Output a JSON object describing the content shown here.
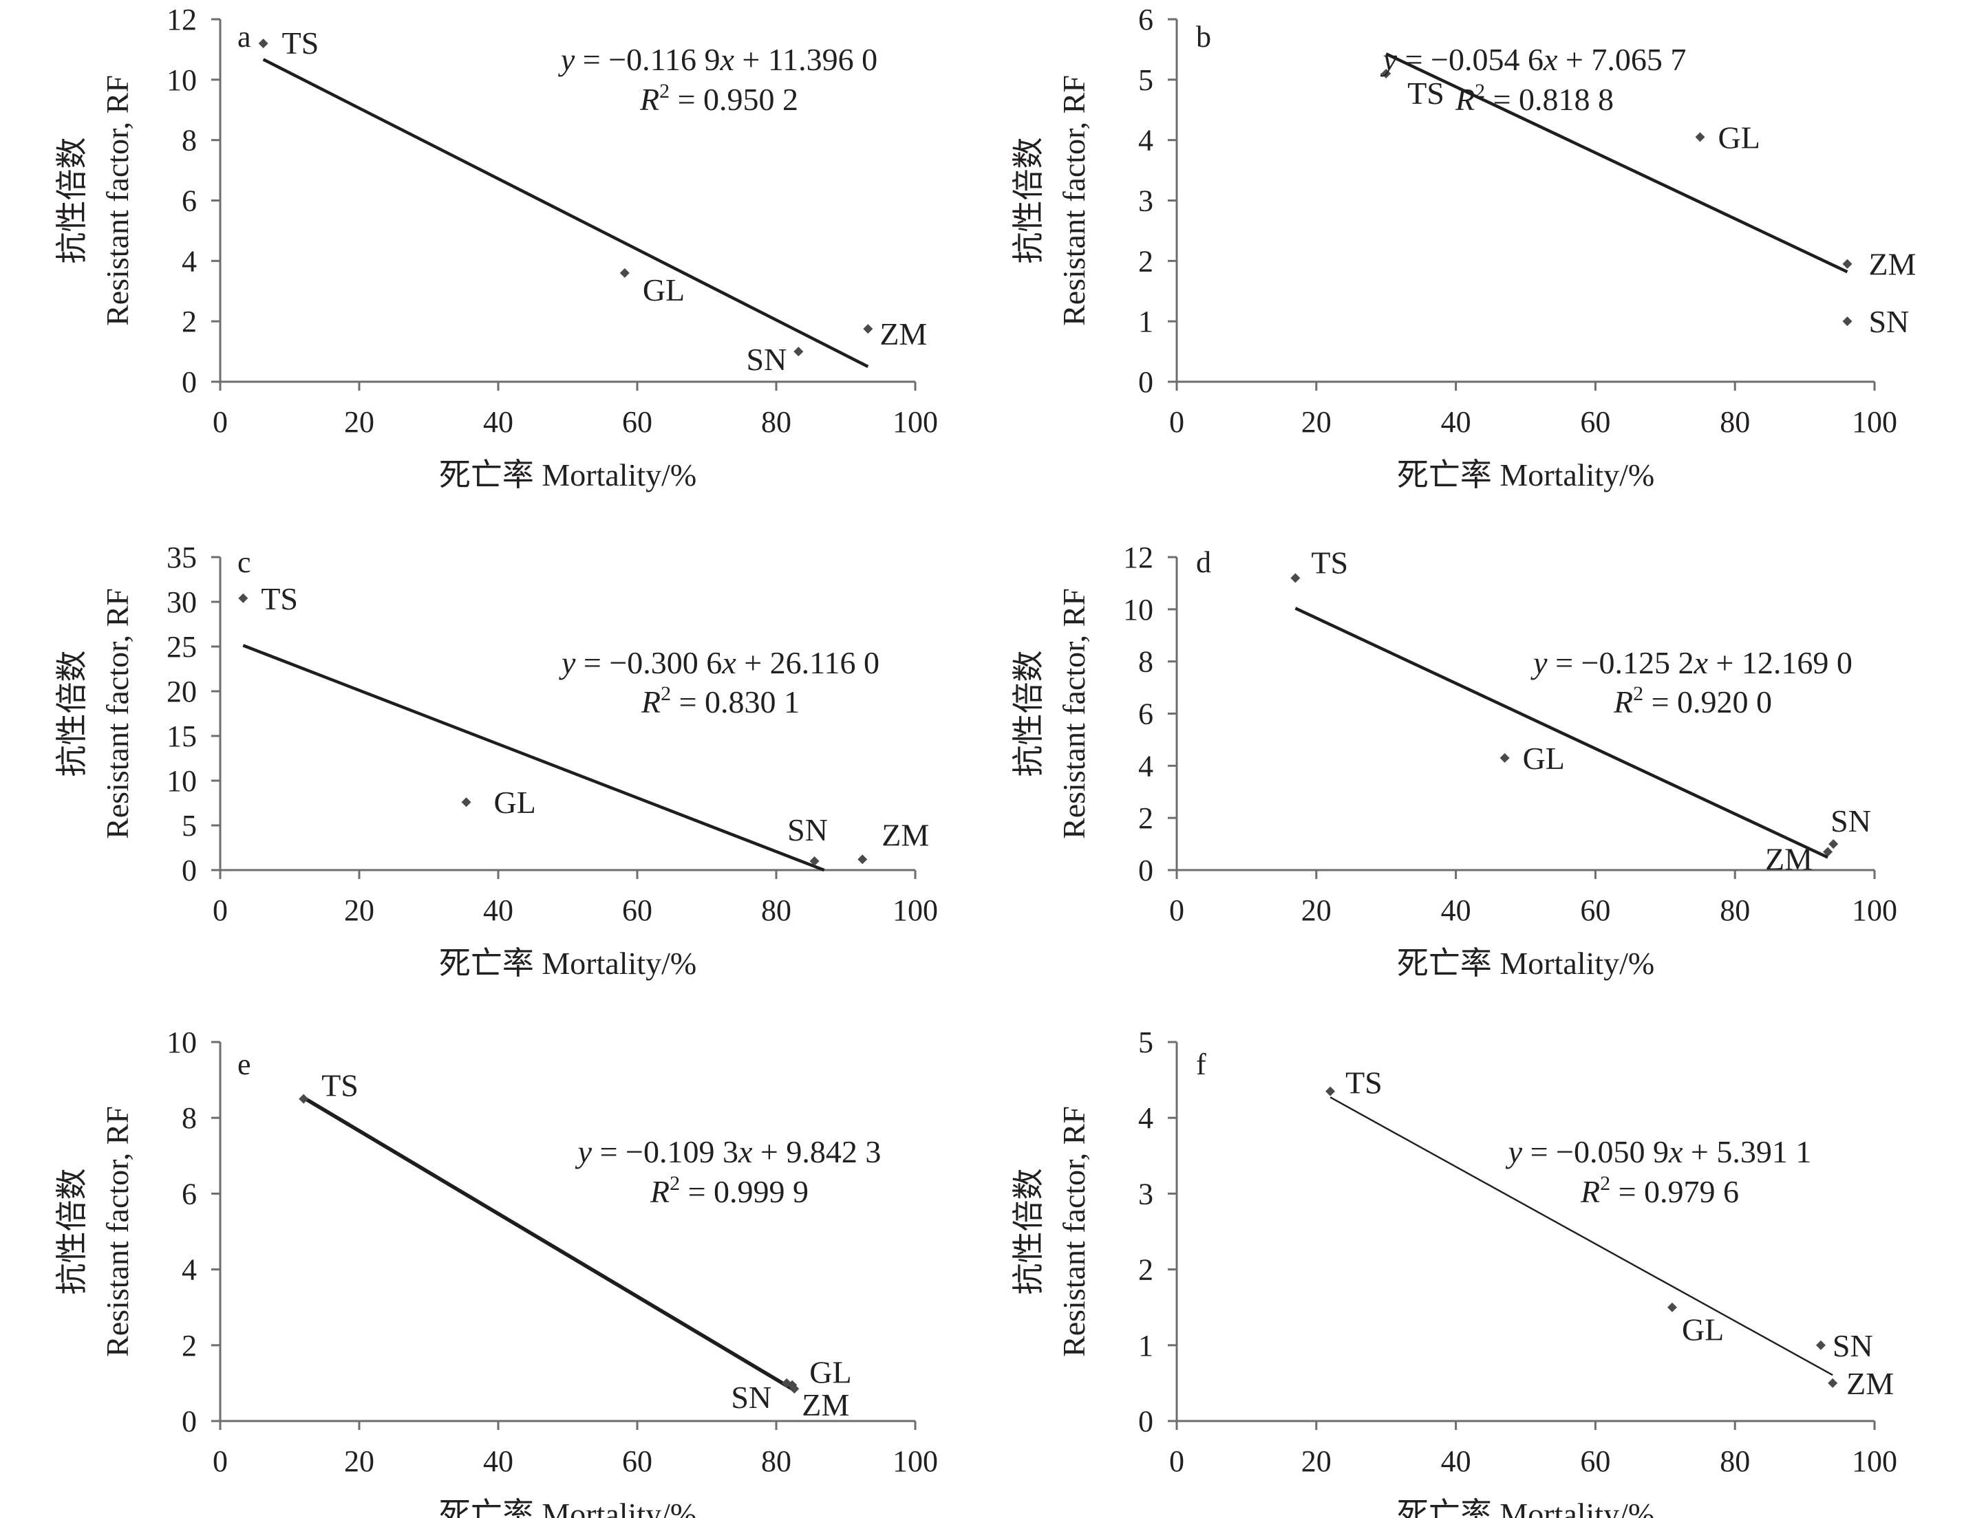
{
  "figure": {
    "panel_count": 6
  },
  "chart_data": [
    {
      "panel": "a",
      "type": "scatter",
      "xlabel": "死亡率 Mortality/%",
      "ylabel": [
        "抗性倍数",
        "Resistant factor, RF"
      ],
      "xlim": [
        0,
        100
      ],
      "ylim": [
        0,
        12
      ],
      "xticks": [
        "0",
        "20",
        "40",
        "60",
        "80",
        "100"
      ],
      "yticks": [
        "0",
        "2",
        "4",
        "6",
        "8",
        "10",
        "12"
      ],
      "points": [
        {
          "label": "TS",
          "x": 6.2,
          "y": 11.2
        },
        {
          "label": "GL",
          "x": 58.2,
          "y": 3.6
        },
        {
          "label": "SN",
          "x": 83.2,
          "y": 1.0
        },
        {
          "label": "ZM",
          "x": 93.2,
          "y": 1.75
        }
      ],
      "fit": {
        "slope": -0.1169,
        "intercept": 11.396,
        "x_range": [
          6.2,
          93.2
        ]
      },
      "equation": [
        "y",
        " = −0.116 9",
        "x",
        " + 11.396 0"
      ],
      "r2": [
        "R",
        "2",
        " = 0.950 2"
      ]
    },
    {
      "panel": "b",
      "type": "scatter",
      "xlabel": "死亡率 Mortality/%",
      "ylabel": [
        "抗性倍数",
        "Resistant factor, RF"
      ],
      "xlim": [
        0,
        100
      ],
      "ylim": [
        0,
        6
      ],
      "xticks": [
        "0",
        "20",
        "40",
        "60",
        "80",
        "100"
      ],
      "yticks": [
        "0",
        "1",
        "2",
        "3",
        "4",
        "5",
        "6"
      ],
      "points": [
        {
          "label": "TS",
          "x": 30.0,
          "y": 5.1
        },
        {
          "label": "GL",
          "x": 75.0,
          "y": 4.05
        },
        {
          "label": "ZM",
          "x": 96.1,
          "y": 1.95
        },
        {
          "label": "SN",
          "x": 96.1,
          "y": 1.0
        }
      ],
      "fit": {
        "slope": -0.0546,
        "intercept": 7.0657,
        "x_range": [
          30.0,
          96.1
        ]
      },
      "equation": [
        "y",
        " = −0.054 6",
        "x",
        " + 7.065 7"
      ],
      "r2": [
        "R",
        "2",
        " = 0.818 8"
      ]
    },
    {
      "panel": "c",
      "type": "scatter",
      "xlabel": "死亡率 Mortality/%",
      "ylabel": [
        "抗性倍数",
        "Resistant factor, RF"
      ],
      "xlim": [
        0,
        100
      ],
      "ylim": [
        0,
        35
      ],
      "xticks": [
        "0",
        "20",
        "40",
        "60",
        "80",
        "100"
      ],
      "yticks": [
        "0",
        "5",
        "10",
        "15",
        "20",
        "25",
        "30",
        "35"
      ],
      "points": [
        {
          "label": "TS",
          "x": 3.3,
          "y": 30.4
        },
        {
          "label": "GL",
          "x": 35.4,
          "y": 7.6
        },
        {
          "label": "SN",
          "x": 85.5,
          "y": 1.0
        },
        {
          "label": "ZM",
          "x": 92.4,
          "y": 1.2
        }
      ],
      "fit": {
        "slope": -0.3006,
        "intercept": 26.116,
        "x_range": [
          3.3,
          86.9
        ]
      },
      "equation": [
        "y",
        " = −0.300 6",
        "x",
        " + 26.116 0"
      ],
      "r2": [
        "R",
        "2",
        " = 0.830 1"
      ]
    },
    {
      "panel": "d",
      "type": "scatter",
      "xlabel": "死亡率 Mortality/%",
      "ylabel": [
        "抗性倍数",
        "Resistant factor, RF"
      ],
      "xlim": [
        0,
        100
      ],
      "ylim": [
        0,
        12
      ],
      "xticks": [
        "0",
        "20",
        "40",
        "60",
        "80",
        "100"
      ],
      "yticks": [
        "0",
        "2",
        "4",
        "6",
        "8",
        "10",
        "12"
      ],
      "points": [
        {
          "label": "TS",
          "x": 17.0,
          "y": 11.2
        },
        {
          "label": "GL",
          "x": 47.0,
          "y": 4.3
        },
        {
          "label": "SN",
          "x": 94.1,
          "y": 1.0
        },
        {
          "label": "ZM",
          "x": 93.3,
          "y": 0.7
        }
      ],
      "fit": {
        "slope": -0.1252,
        "intercept": 12.169,
        "x_range": [
          17.0,
          93.3
        ]
      },
      "equation": [
        "y",
        " = −0.125 2",
        "x",
        " + 12.169 0"
      ],
      "r2": [
        "R",
        "2",
        " = 0.920 0"
      ]
    },
    {
      "panel": "e",
      "type": "scatter",
      "xlabel": "死亡率 Mortality/%",
      "ylabel": [
        "抗性倍数",
        "Resistant factor, RF"
      ],
      "xlim": [
        0,
        100
      ],
      "ylim": [
        0,
        10
      ],
      "xticks": [
        "0",
        "20",
        "40",
        "60",
        "80",
        "100"
      ],
      "yticks": [
        "0",
        "2",
        "4",
        "6",
        "8",
        "10"
      ],
      "points": [
        {
          "label": "TS",
          "x": 12.0,
          "y": 8.5
        },
        {
          "label": "SN",
          "x": 81.5,
          "y": 1.0
        },
        {
          "label": "GL",
          "x": 82.3,
          "y": 0.95
        },
        {
          "label": "ZM",
          "x": 82.6,
          "y": 0.85
        }
      ],
      "fit": {
        "slope": -0.1093,
        "intercept": 9.8423,
        "x_range": [
          12.0,
          82.6
        ]
      },
      "equation": [
        "y",
        " = −0.109 3",
        "x",
        " + 9.842 3"
      ],
      "r2": [
        "R",
        "2",
        " = 0.999 9"
      ]
    },
    {
      "panel": "f",
      "type": "scatter",
      "xlabel": "死亡率 Mortality/%",
      "ylabel": [
        "抗性倍数",
        "Resistant factor, RF"
      ],
      "xlim": [
        0,
        100
      ],
      "ylim": [
        0,
        5
      ],
      "xticks": [
        "0",
        "20",
        "40",
        "60",
        "80",
        "100"
      ],
      "yticks": [
        "0",
        "1",
        "2",
        "3",
        "4",
        "5"
      ],
      "points": [
        {
          "label": "TS",
          "x": 22.0,
          "y": 4.35
        },
        {
          "label": "GL",
          "x": 71.0,
          "y": 1.5
        },
        {
          "label": "SN",
          "x": 92.3,
          "y": 1.0
        },
        {
          "label": "ZM",
          "x": 94.0,
          "y": 0.5
        }
      ],
      "fit": {
        "slope": -0.0509,
        "intercept": 5.3911,
        "x_range": [
          22.0,
          94.0
        ]
      },
      "equation": [
        "y",
        " = −0.050 9",
        "x",
        " + 5.391 1"
      ],
      "r2": [
        "R",
        "2",
        " = 0.979 6"
      ]
    }
  ]
}
